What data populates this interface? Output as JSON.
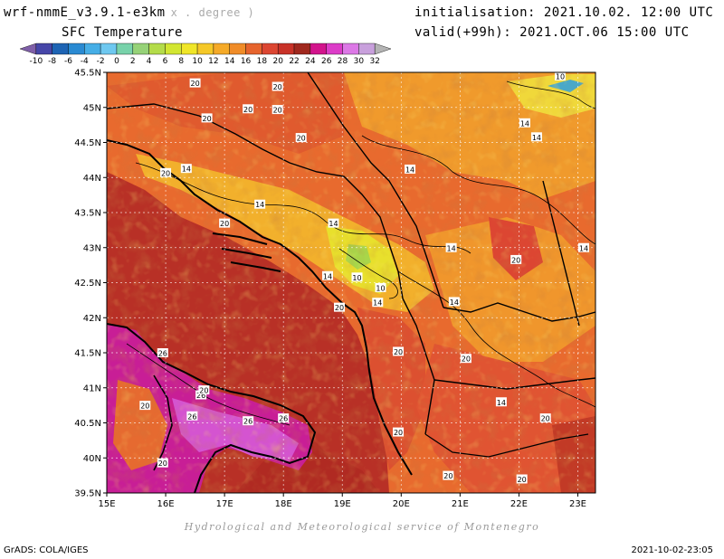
{
  "header": {
    "model": "wrf-nmmE_v3.9.1-e3km",
    "units": "x . degree )",
    "field": "SFC Temperature",
    "initialisation": "initialisation: 2021.10.02. 12:00 UTC",
    "valid": "valid(+99h): 2021.OCT.06 15:00 UTC"
  },
  "colorbar": {
    "ticks": [
      "-10",
      "-8",
      "-6",
      "-4",
      "-2",
      "0",
      "2",
      "4",
      "6",
      "8",
      "10",
      "12",
      "14",
      "16",
      "18",
      "20",
      "22",
      "24",
      "26",
      "28",
      "30",
      "32"
    ],
    "colors": [
      "#7f5fa8",
      "#4646a8",
      "#1e64b4",
      "#2a8ad2",
      "#46aee6",
      "#6ec8f0",
      "#78d2aa",
      "#96d278",
      "#b4dc4a",
      "#d2e632",
      "#f0e628",
      "#f5c828",
      "#f5aa28",
      "#f08c28",
      "#e6642d",
      "#dc4632",
      "#c83228",
      "#a0281e",
      "#d2148c",
      "#dc3cc8",
      "#dc78e6",
      "#c8a0dc",
      "#b4b4b4"
    ],
    "bounds": [
      -10,
      32
    ]
  },
  "map": {
    "lat_ticks": [
      "45.5N",
      "45N",
      "44.5N",
      "44N",
      "43.5N",
      "43N",
      "42.5N",
      "42N",
      "41.5N",
      "41N",
      "40.5N",
      "40N",
      "39.5N"
    ],
    "lon_ticks": [
      "15E",
      "16E",
      "17E",
      "18E",
      "19E",
      "20E",
      "21E",
      "22E",
      "23E"
    ],
    "lat_range": [
      39.5,
      45.5
    ],
    "lon_range": [
      15,
      23.3
    ],
    "contour_labels": [
      {
        "text": "20",
        "lon": 16.5,
        "lat": 45.35
      },
      {
        "text": "20",
        "lon": 17.9,
        "lat": 45.3
      },
      {
        "text": "20",
        "lon": 17.4,
        "lat": 44.98
      },
      {
        "text": "20",
        "lon": 17.9,
        "lat": 44.97
      },
      {
        "text": "20",
        "lon": 16.7,
        "lat": 44.85
      },
      {
        "text": "10",
        "lon": 22.7,
        "lat": 45.45
      },
      {
        "text": "14",
        "lon": 22.1,
        "lat": 44.78
      },
      {
        "text": "14",
        "lon": 22.3,
        "lat": 44.58
      },
      {
        "text": "20",
        "lon": 18.3,
        "lat": 44.57
      },
      {
        "text": "14",
        "lon": 16.35,
        "lat": 44.13
      },
      {
        "text": "20",
        "lon": 16.0,
        "lat": 44.07
      },
      {
        "text": "14",
        "lon": 20.15,
        "lat": 44.12
      },
      {
        "text": "14",
        "lon": 17.6,
        "lat": 43.62
      },
      {
        "text": "14",
        "lon": 18.85,
        "lat": 43.35
      },
      {
        "text": "20",
        "lon": 17.0,
        "lat": 43.35
      },
      {
        "text": "14",
        "lon": 20.85,
        "lat": 43.0
      },
      {
        "text": "14",
        "lon": 23.1,
        "lat": 43.0
      },
      {
        "text": "20",
        "lon": 21.95,
        "lat": 42.83
      },
      {
        "text": "14",
        "lon": 18.75,
        "lat": 42.6
      },
      {
        "text": "10",
        "lon": 19.25,
        "lat": 42.58
      },
      {
        "text": "10",
        "lon": 19.65,
        "lat": 42.43
      },
      {
        "text": "14",
        "lon": 19.6,
        "lat": 42.22
      },
      {
        "text": "14",
        "lon": 20.9,
        "lat": 42.23
      },
      {
        "text": "20",
        "lon": 18.95,
        "lat": 42.15
      },
      {
        "text": "20",
        "lon": 19.95,
        "lat": 41.52
      },
      {
        "text": "20",
        "lon": 21.1,
        "lat": 41.42
      },
      {
        "text": "26",
        "lon": 15.95,
        "lat": 41.5
      },
      {
        "text": "26",
        "lon": 16.6,
        "lat": 40.9
      },
      {
        "text": "26",
        "lon": 16.45,
        "lat": 40.6
      },
      {
        "text": "26",
        "lon": 17.4,
        "lat": 40.53
      },
      {
        "text": "26",
        "lon": 18.0,
        "lat": 40.57
      },
      {
        "text": "14",
        "lon": 21.7,
        "lat": 40.8
      },
      {
        "text": "20",
        "lon": 16.65,
        "lat": 40.97
      },
      {
        "text": "20",
        "lon": 15.65,
        "lat": 40.75
      },
      {
        "text": "20",
        "lon": 22.45,
        "lat": 40.57
      },
      {
        "text": "20",
        "lon": 19.95,
        "lat": 40.37
      },
      {
        "text": "20",
        "lon": 15.95,
        "lat": 39.93
      },
      {
        "text": "20",
        "lon": 20.8,
        "lat": 39.75
      },
      {
        "text": "20",
        "lon": 22.05,
        "lat": 39.7
      }
    ]
  },
  "credit": "Hydrological and Meteorological service of Montenegro",
  "footer": {
    "left": "GrADS: COLA/IGES",
    "right": "2021-10-02-23:05"
  }
}
